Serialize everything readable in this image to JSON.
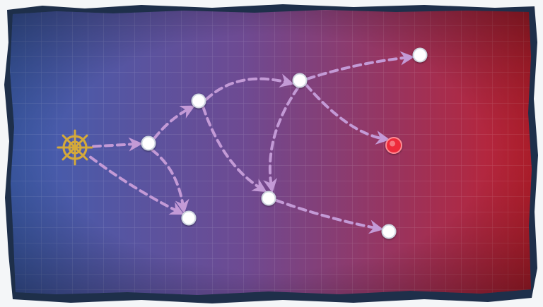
{
  "screen": "sortie-route-map",
  "colors": {
    "background": "#f4f6f8",
    "frame_edge": "#1e2f4a",
    "sea_blue": "#3f5fb0",
    "sea_purple": "#6e4a92",
    "sea_red": "#c0202f",
    "grid_line": "#ffffff",
    "route_arrow": "#c39ad6",
    "node_normal": "#ffffff",
    "node_boss": "#ee2c3a",
    "start_icon": "#d4a93a"
  },
  "icons": {
    "start": "ship-wheel-icon",
    "node": "map-node-icon",
    "boss": "boss-node-icon"
  },
  "start_node": {
    "id": "start",
    "type": "start"
  },
  "nodes": [
    {
      "id": "A",
      "type": "normal"
    },
    {
      "id": "B",
      "type": "normal"
    },
    {
      "id": "C",
      "type": "normal"
    },
    {
      "id": "D",
      "type": "normal"
    },
    {
      "id": "E",
      "type": "normal"
    },
    {
      "id": "F",
      "type": "normal"
    },
    {
      "id": "G",
      "type": "normal"
    },
    {
      "id": "BOSS",
      "type": "boss"
    }
  ],
  "routes": [
    {
      "from": "start",
      "to": "A"
    },
    {
      "from": "start",
      "to": "C"
    },
    {
      "from": "A",
      "to": "B"
    },
    {
      "from": "A",
      "to": "C"
    },
    {
      "from": "B",
      "to": "D"
    },
    {
      "from": "B",
      "to": "E"
    },
    {
      "from": "D",
      "to": "E"
    },
    {
      "from": "D",
      "to": "F"
    },
    {
      "from": "D",
      "to": "BOSS"
    },
    {
      "from": "E",
      "to": "G"
    }
  ]
}
